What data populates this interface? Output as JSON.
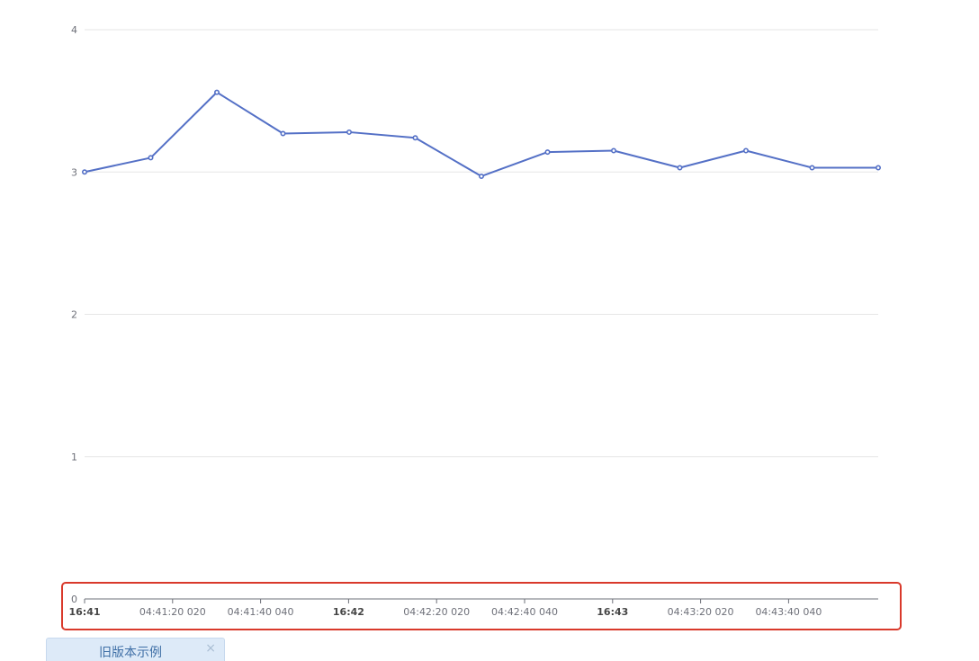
{
  "chart_data": {
    "type": "line",
    "xlabel": "",
    "ylabel": "",
    "ylim": [
      0,
      4
    ],
    "y_ticks": [
      "0",
      "1",
      "2",
      "3",
      "4"
    ],
    "grid": true,
    "line_color": "#5470c6",
    "x_ticks": [
      {
        "label": "16:41",
        "major": true
      },
      {
        "label": "04:41:20 020",
        "major": false
      },
      {
        "label": "04:41:40 040",
        "major": false
      },
      {
        "label": "16:42",
        "major": true
      },
      {
        "label": "04:42:20 020",
        "major": false
      },
      {
        "label": "04:42:40 040",
        "major": false
      },
      {
        "label": "16:43",
        "major": true
      },
      {
        "label": "04:43:20 020",
        "major": false
      },
      {
        "label": "04:43:40 040",
        "major": false
      }
    ],
    "series": [
      {
        "values": [
          3.0,
          3.1,
          3.56,
          3.27,
          3.28,
          3.24,
          2.97,
          3.14,
          3.15,
          3.03,
          3.15,
          3.03,
          3.03
        ]
      }
    ]
  },
  "highlight_color": "#d9392b",
  "legacy_tab": {
    "label": "旧版本示例",
    "close": "×"
  }
}
